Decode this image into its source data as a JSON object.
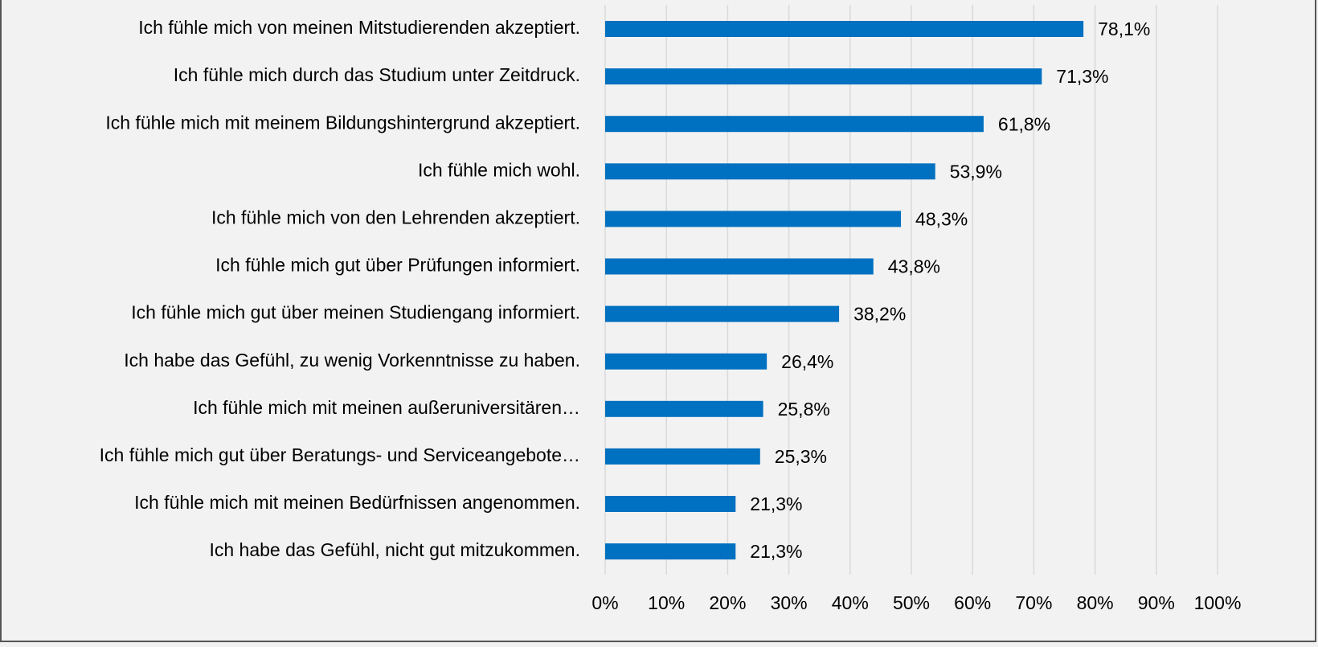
{
  "chart_data": {
    "type": "bar",
    "orientation": "horizontal",
    "categories": [
      "Ich fühle mich von meinen Mitstudierenden akzeptiert.",
      "Ich fühle mich durch das Studium unter Zeitdruck.",
      "Ich fühle mich mit meinem Bildungshintergrund akzeptiert.",
      "Ich fühle mich wohl.",
      "Ich fühle mich von den Lehrenden akzeptiert.",
      "Ich fühle mich gut über Prüfungen informiert.",
      "Ich fühle mich gut über meinen Studiengang informiert.",
      "Ich habe das Gefühl, zu wenig Vorkenntnisse zu haben.",
      "Ich fühle mich mit meinen außeruniversitären…",
      "Ich fühle mich gut über Beratungs- und Serviceangebote…",
      "Ich fühle mich mit meinen Bedürfnissen angenommen.",
      "Ich habe das Gefühl, nicht gut mitzukommen."
    ],
    "values": [
      78.1,
      71.3,
      61.8,
      53.9,
      48.3,
      43.8,
      38.2,
      26.4,
      25.8,
      25.3,
      21.3,
      21.3
    ],
    "value_labels": [
      "78,1%",
      "71,3%",
      "61,8%",
      "53,9%",
      "48,3%",
      "43,8%",
      "38,2%",
      "26,4%",
      "25,8%",
      "25,3%",
      "21,3%",
      "21,3%"
    ],
    "color": "#0070c0",
    "xlim": [
      0,
      100
    ],
    "xticks": [
      {
        "value": 0,
        "label": "0%"
      },
      {
        "value": 10,
        "label": "10%"
      },
      {
        "value": 20,
        "label": "20%"
      },
      {
        "value": 30,
        "label": "30%"
      },
      {
        "value": 40,
        "label": "40%"
      },
      {
        "value": 50,
        "label": "50%"
      },
      {
        "value": 60,
        "label": "60%"
      },
      {
        "value": 70,
        "label": "70%"
      },
      {
        "value": 80,
        "label": "80%"
      },
      {
        "value": 90,
        "label": "90%"
      },
      {
        "value": 100,
        "label": "100%"
      }
    ],
    "grid": true
  }
}
